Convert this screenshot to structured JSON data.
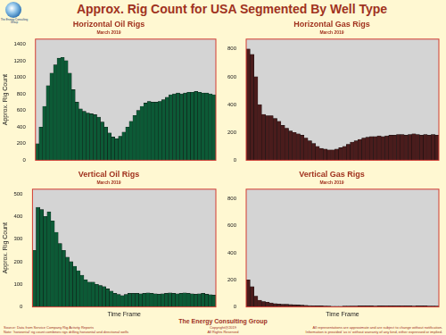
{
  "page": {
    "title": "Approx. Rig Count for USA Segmented By Well Type",
    "logo_text": "The Energy Consulting Group",
    "footer": {
      "source": "Source: Data from Service Company Rig Activity Reports",
      "note": "Note: 'horizontal' rig count combines rigs drilling horizontal and directional wells",
      "company": "The Energy Consulting Group",
      "copyright": "Copyright@2019",
      "rights": "All Rights Reserved",
      "disclaimer": [
        "All representations are approximate and are subject to change without notification.",
        "Information is provided 'as is' without warranty of any kind, either expressed or implied."
      ]
    }
  },
  "chart_data": [
    {
      "type": "bar",
      "title": "Horizontal Oil Rigs",
      "subtitle": "March 2019",
      "y_label": "Approx. Rig Count",
      "categories": [
        null,
        null,
        null,
        null,
        null,
        null,
        null,
        null,
        null,
        null,
        null,
        null,
        null,
        null,
        null,
        null,
        null,
        null,
        null,
        null,
        null,
        null,
        null,
        null,
        null,
        null,
        null,
        null,
        null,
        null,
        null,
        null,
        null,
        null,
        null,
        null,
        null,
        null,
        null,
        null,
        null,
        null,
        null,
        null,
        null,
        null,
        null,
        null,
        null,
        null
      ],
      "values": [
        200,
        400,
        650,
        900,
        1050,
        1150,
        1230,
        1240,
        1200,
        1050,
        850,
        700,
        620,
        590,
        570,
        560,
        550,
        520,
        460,
        400,
        330,
        280,
        260,
        290,
        340,
        400,
        470,
        540,
        600,
        650,
        690,
        710,
        700,
        700,
        710,
        730,
        760,
        790,
        800,
        810,
        800,
        810,
        820,
        820,
        830,
        820,
        810,
        810,
        800,
        790
      ],
      "color": "#0c5a36",
      "ylim": [
        0,
        1460
      ],
      "yticks": [
        0,
        200,
        400,
        600,
        800,
        1000,
        1200,
        1400
      ],
      "grid": false,
      "tick_labels": "y"
    },
    {
      "type": "bar",
      "title": "Horizontal Gas Rigs",
      "subtitle": "March 2019",
      "categories": [
        null,
        null,
        null,
        null,
        null,
        null,
        null,
        null,
        null,
        null,
        null,
        null,
        null,
        null,
        null,
        null,
        null,
        null,
        null,
        null,
        null,
        null,
        null,
        null,
        null,
        null,
        null,
        null,
        null,
        null,
        null,
        null,
        null,
        null,
        null,
        null,
        null,
        null,
        null,
        null,
        null,
        null,
        null,
        null,
        null,
        null,
        null,
        null,
        null,
        null
      ],
      "values": [
        800,
        760,
        600,
        400,
        330,
        320,
        320,
        300,
        280,
        250,
        230,
        210,
        200,
        190,
        180,
        160,
        140,
        120,
        100,
        85,
        80,
        75,
        75,
        80,
        90,
        100,
        115,
        130,
        140,
        150,
        160,
        165,
        170,
        170,
        175,
        170,
        175,
        180,
        180,
        185,
        185,
        180,
        185,
        190,
        185,
        180,
        185,
        180,
        185,
        180
      ],
      "color": "#4a1c1c",
      "ylim": [
        0,
        870
      ],
      "yticks": [
        0,
        200,
        400,
        600,
        800
      ],
      "grid": false,
      "tick_labels": "y"
    },
    {
      "type": "bar",
      "title": "Vertical Oil Rigs",
      "subtitle": "March 2019",
      "y_label": "Approx. Rig Count",
      "x_label": "Time Frame",
      "categories": [
        null,
        null,
        null,
        null,
        null,
        null,
        null,
        null,
        null,
        null,
        null,
        null,
        null,
        null,
        null,
        null,
        null,
        null,
        null,
        null,
        null,
        null,
        null,
        null,
        null,
        null,
        null,
        null,
        null,
        null,
        null,
        null,
        null,
        null,
        null,
        null,
        null,
        null,
        null,
        null,
        null,
        null,
        null,
        null,
        null,
        null,
        null,
        null,
        null,
        null
      ],
      "values": [
        250,
        440,
        430,
        400,
        420,
        380,
        330,
        280,
        250,
        220,
        200,
        180,
        160,
        140,
        120,
        110,
        110,
        100,
        95,
        90,
        80,
        70,
        60,
        55,
        50,
        55,
        60,
        60,
        60,
        58,
        60,
        62,
        60,
        58,
        56,
        58,
        60,
        62,
        60,
        58,
        60,
        62,
        60,
        58,
        56,
        58,
        60,
        56,
        54,
        52
      ],
      "color": "#0c5a36",
      "ylim": [
        0,
        520
      ],
      "yticks": [
        0,
        100,
        200,
        300,
        400,
        500
      ],
      "grid": false,
      "tick_labels": "y"
    },
    {
      "type": "bar",
      "title": "Vertical Gas Rigs",
      "subtitle": "March 2019",
      "x_label": "Time Frame",
      "categories": [
        null,
        null,
        null,
        null,
        null,
        null,
        null,
        null,
        null,
        null,
        null,
        null,
        null,
        null,
        null,
        null,
        null,
        null,
        null,
        null,
        null,
        null,
        null,
        null,
        null,
        null,
        null,
        null,
        null,
        null,
        null,
        null,
        null,
        null,
        null,
        null,
        null,
        null,
        null,
        null,
        null,
        null,
        null,
        null,
        null,
        null,
        null,
        null,
        null,
        null
      ],
      "values": [
        200,
        150,
        80,
        50,
        40,
        35,
        30,
        25,
        22,
        20,
        20,
        18,
        16,
        15,
        14,
        12,
        10,
        9,
        8,
        8,
        7,
        6,
        5,
        5,
        5,
        6,
        6,
        7,
        7,
        8,
        8,
        8,
        8,
        7,
        8,
        8,
        9,
        8,
        8,
        8,
        9,
        8,
        8,
        7,
        8,
        8,
        8,
        7,
        7,
        6
      ],
      "color": "#4a1c1c",
      "ylim": [
        0,
        870
      ],
      "yticks": [
        0,
        200,
        400,
        600,
        800
      ],
      "grid": false,
      "tick_labels": "y"
    }
  ]
}
